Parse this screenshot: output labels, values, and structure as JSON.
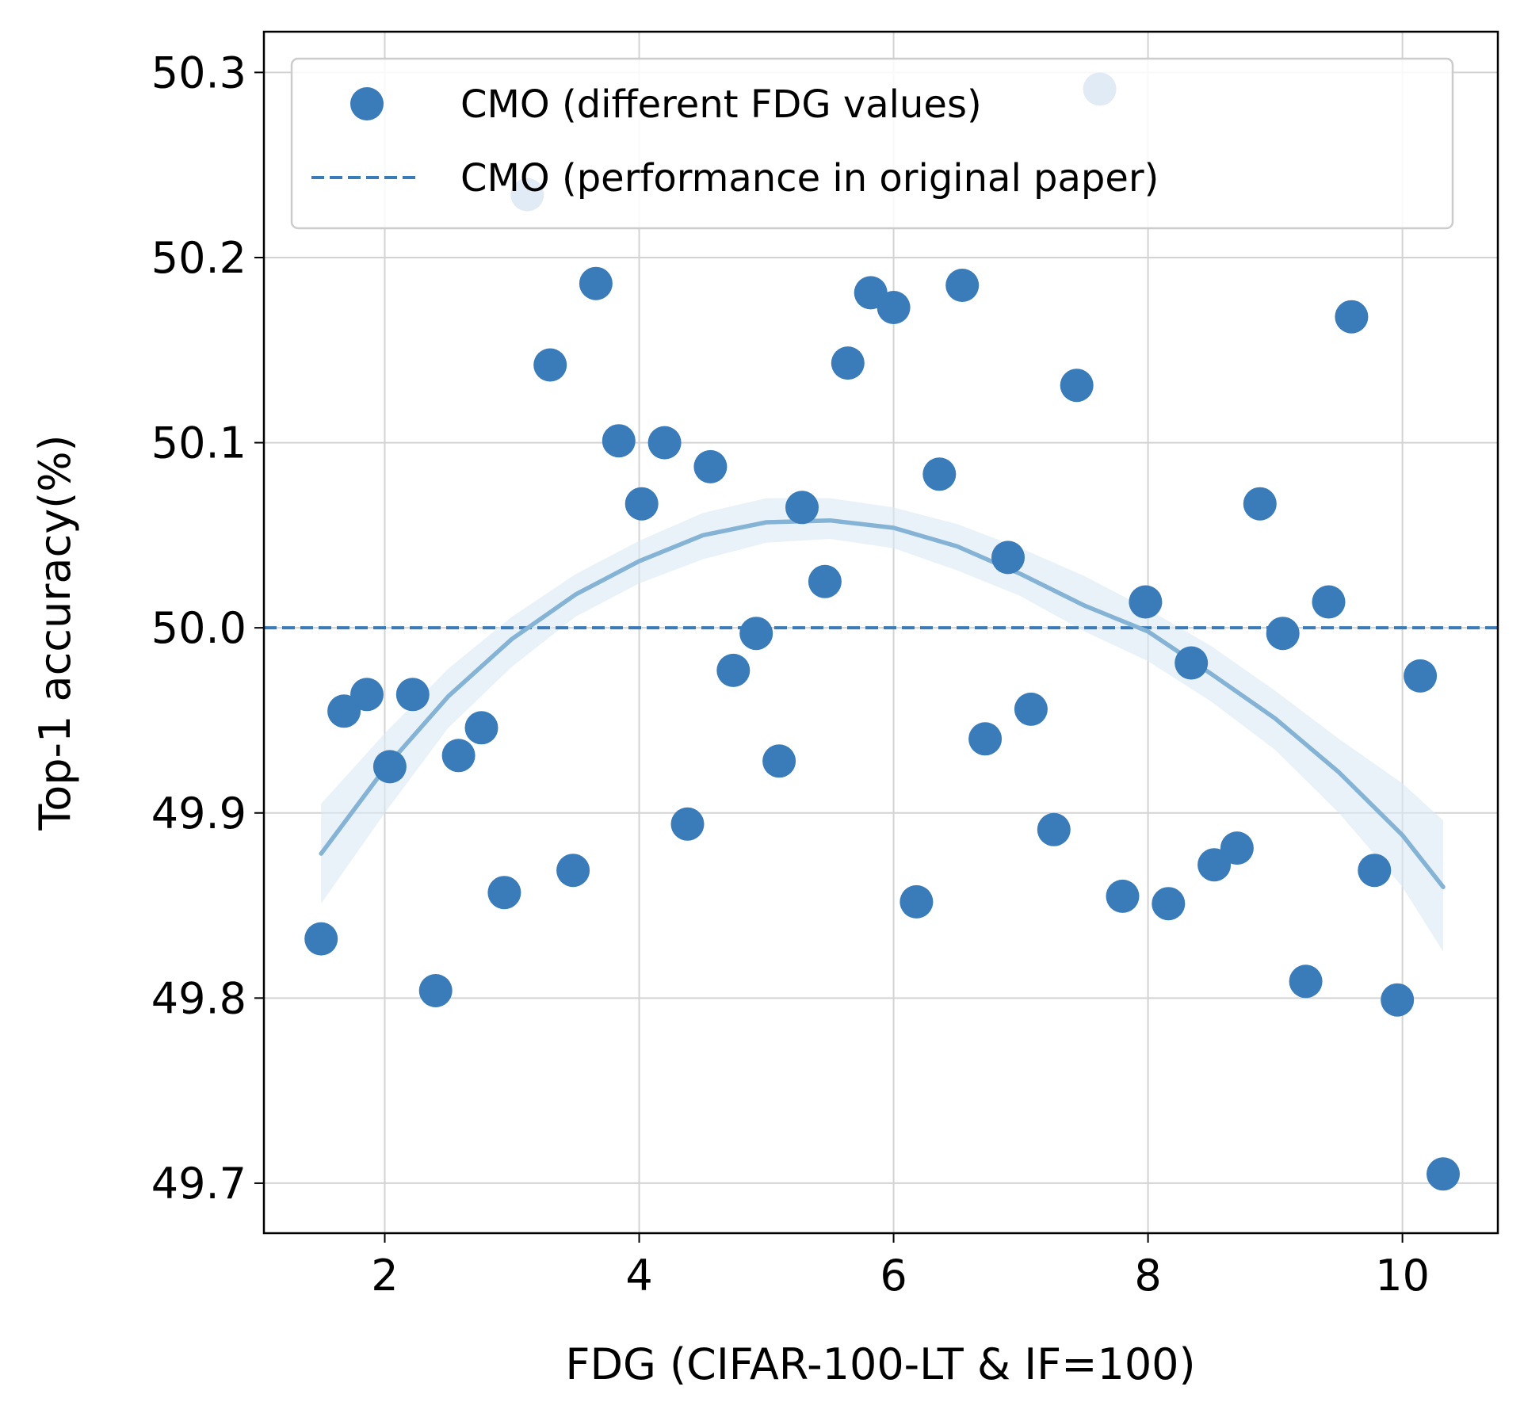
{
  "chart_data": {
    "type": "scatter",
    "title": "",
    "xlabel": "FDG (CIFAR-100-LT & IF=100)",
    "ylabel": "Top-1 accuracy(%)",
    "xlim": [
      1.05,
      10.75
    ],
    "ylim": [
      49.673,
      50.322
    ],
    "x_ticks": [
      2,
      4,
      6,
      8,
      10
    ],
    "x_tick_labels": [
      "2",
      "4",
      "6",
      "8",
      "10"
    ],
    "y_ticks": [
      49.7,
      49.8,
      49.9,
      50.0,
      50.1,
      50.2,
      50.3
    ],
    "y_tick_labels": [
      "49.7",
      "49.8",
      "49.9",
      "50.0",
      "50.1",
      "50.2",
      "50.3"
    ],
    "grid": true,
    "legend_position": "top-right",
    "colors": {
      "points": "#3a7cb9",
      "baseline": "#3a7cb9",
      "fit": "#84b3d6",
      "band": "#dce9f5"
    },
    "series": [
      {
        "name": "CMO (different FDG values)",
        "kind": "scatter",
        "x": [
          1.5,
          1.68,
          1.86,
          2.04,
          2.22,
          2.4,
          2.58,
          2.76,
          2.94,
          3.12,
          3.3,
          3.48,
          3.66,
          3.84,
          4.02,
          4.2,
          4.38,
          4.56,
          4.74,
          4.92,
          5.1,
          5.28,
          5.46,
          5.64,
          5.82,
          6.0,
          6.18,
          6.36,
          6.54,
          6.72,
          6.9,
          7.08,
          7.26,
          7.44,
          7.62,
          7.8,
          7.98,
          8.16,
          8.34,
          8.52,
          8.7,
          8.88,
          9.06,
          9.24,
          9.42,
          9.6,
          9.78,
          9.96,
          10.14,
          10.32
        ],
        "y": [
          49.832,
          49.955,
          49.964,
          49.925,
          49.964,
          49.804,
          49.931,
          49.946,
          49.857,
          50.234,
          50.142,
          49.869,
          50.186,
          50.101,
          50.067,
          50.1,
          49.894,
          50.087,
          49.977,
          49.997,
          49.928,
          50.065,
          50.025,
          50.143,
          50.181,
          50.173,
          49.852,
          50.083,
          50.185,
          49.94,
          50.038,
          49.956,
          49.891,
          50.131,
          50.291,
          49.855,
          50.014,
          49.851,
          49.981,
          49.872,
          49.881,
          50.067,
          49.997,
          49.809,
          50.014,
          50.168,
          49.869,
          49.799,
          49.974,
          49.705
        ]
      },
      {
        "name": "CMO (performance in original paper)",
        "kind": "hline",
        "y": 50.0
      },
      {
        "name": "quadratic fit",
        "kind": "fit",
        "x": [
          1.5,
          2.0,
          2.5,
          3.0,
          3.5,
          4.0,
          4.5,
          5.0,
          5.5,
          6.0,
          6.5,
          7.0,
          7.5,
          8.0,
          8.5,
          9.0,
          9.5,
          10.0,
          10.32
        ],
        "y": [
          49.878,
          49.924,
          49.963,
          49.994,
          50.018,
          50.036,
          50.05,
          50.057,
          50.058,
          50.054,
          50.044,
          50.029,
          50.012,
          49.998,
          49.975,
          49.951,
          49.922,
          49.888,
          49.86
        ],
        "upper": [
          49.905,
          49.943,
          49.978,
          50.006,
          50.029,
          50.047,
          50.062,
          50.07,
          50.07,
          50.065,
          50.056,
          50.043,
          50.028,
          50.01,
          49.99,
          49.966,
          49.94,
          49.916,
          49.896
        ],
        "lower": [
          49.851,
          49.9,
          49.946,
          49.979,
          50.006,
          50.024,
          50.037,
          50.046,
          50.048,
          50.043,
          50.031,
          50.017,
          49.998,
          49.982,
          49.96,
          49.934,
          49.9,
          49.86,
          49.825
        ]
      }
    ]
  }
}
